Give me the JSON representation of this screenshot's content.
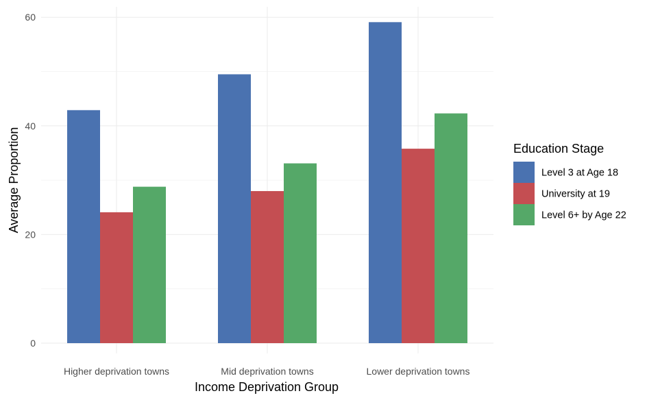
{
  "chart_data": {
    "type": "bar",
    "xlabel": "Income Deprivation Group",
    "ylabel": "Average Proportion",
    "categories": [
      "Higher deprivation towns",
      "Mid deprivation towns",
      "Lower deprivation towns"
    ],
    "ylim": [
      0,
      60
    ],
    "yticks": [
      0,
      20,
      40,
      60
    ],
    "grid": true,
    "legend": {
      "title": "Education Stage",
      "position": "right"
    },
    "series": [
      {
        "name": "Level 3 at Age 18",
        "color": "#4a72b0",
        "values": [
          42.9,
          49.5,
          59.1
        ]
      },
      {
        "name": "University at 19",
        "color": "#c44e52",
        "values": [
          24.1,
          28.0,
          35.8
        ]
      },
      {
        "name": "Level 6+ by Age 22",
        "color": "#55a868",
        "values": [
          28.8,
          33.1,
          42.3
        ]
      }
    ]
  }
}
